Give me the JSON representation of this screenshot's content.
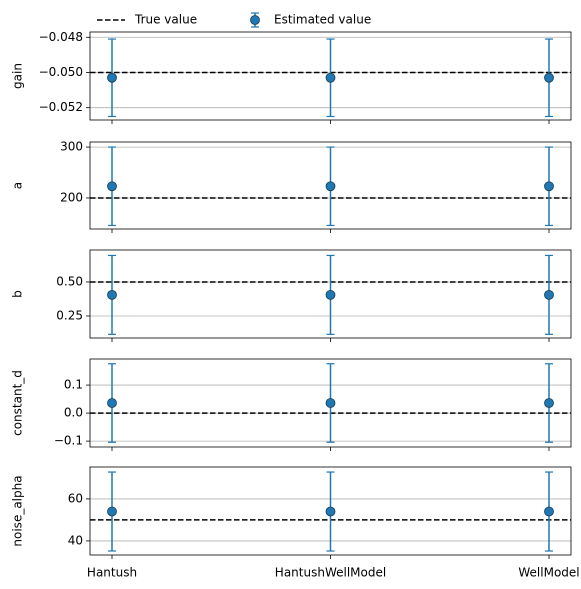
{
  "chart_data": [
    {
      "type": "errorbar",
      "ylabel": "gain",
      "categories": [
        null,
        null,
        null
      ],
      "values": [
        -0.0503,
        -0.0503,
        -0.0503
      ],
      "errors": [
        0.0022,
        0.0022,
        0.0022
      ],
      "true_value": -0.05,
      "color": "#1f77b4",
      "ylim": [
        -0.0527,
        -0.0477
      ],
      "yticks": [
        {
          "value": -0.052,
          "label": "−0.052"
        },
        {
          "value": -0.05,
          "label": "−0.050"
        },
        {
          "value": -0.048,
          "label": "−0.048"
        }
      ],
      "grid": true,
      "legend": {
        "true_value": "True value",
        "values": "Estimated value"
      }
    },
    {
      "type": "errorbar",
      "ylabel": "a",
      "categories": [
        null,
        null,
        null
      ],
      "values": [
        223,
        223,
        223
      ],
      "errors": [
        77,
        77,
        77
      ],
      "true_value": 200,
      "color": "#1f77b4",
      "ylim": [
        139,
        310
      ],
      "yticks": [
        200,
        300
      ],
      "grid": true
    },
    {
      "type": "errorbar",
      "ylabel": "b",
      "categories": [
        null,
        null,
        null
      ],
      "values": [
        0.405,
        0.405,
        0.405
      ],
      "errors": [
        0.29,
        0.29,
        0.29
      ],
      "true_value": 0.5,
      "color": "#1f77b4",
      "ylim": [
        0.088,
        0.735
      ],
      "yticks": [
        0.25,
        {
          "value": 0.5,
          "label": "0.50"
        }
      ],
      "grid": true
    },
    {
      "type": "errorbar",
      "ylabel": "constant_d",
      "categories": [
        null,
        null,
        null
      ],
      "values": [
        0.036,
        0.036,
        0.036
      ],
      "errors": [
        0.14,
        0.14,
        0.14
      ],
      "true_value": 0,
      "color": "#1f77b4",
      "ylim": [
        -0.121,
        0.193
      ],
      "yticks": [
        {
          "value": -0.1,
          "label": "−0.1"
        },
        {
          "value": 0,
          "label": "0.0"
        },
        0.1
      ],
      "grid": true
    },
    {
      "type": "errorbar",
      "ylabel": "noise_alpha",
      "categories": [
        "Hantush",
        "HantushWellModel",
        "WellModel"
      ],
      "values": [
        54,
        54,
        54
      ],
      "errors": [
        18.8,
        18.8,
        18.8
      ],
      "true_value": 50,
      "color": "#1f77b4",
      "ylim": [
        33.3,
        75.2
      ],
      "yticks": [
        40,
        60
      ],
      "grid": true
    }
  ]
}
